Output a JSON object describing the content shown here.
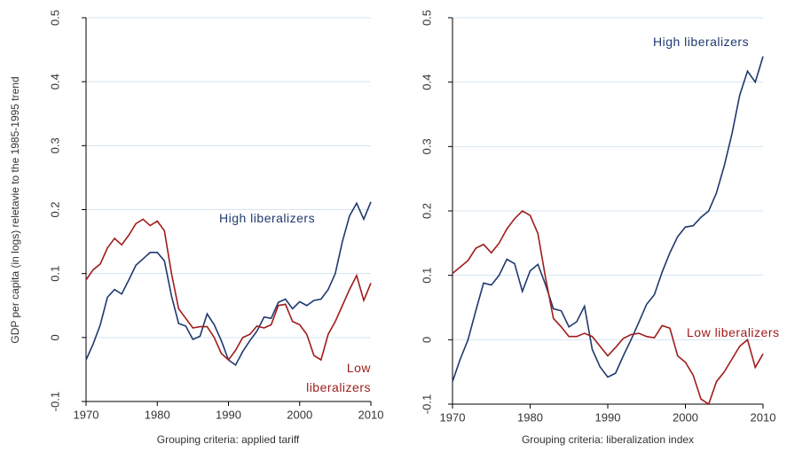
{
  "chart_data": [
    {
      "type": "line",
      "xlabel": "Grouping criteria: applied tariff",
      "ylabel": "GDP per capita (in logs) reletavie to the 1985-1995 trend",
      "x": [
        1970,
        1971,
        1972,
        1973,
        1974,
        1975,
        1976,
        1977,
        1978,
        1979,
        1980,
        1981,
        1982,
        1983,
        1984,
        1985,
        1986,
        1987,
        1988,
        1989,
        1990,
        1991,
        1992,
        1993,
        1994,
        1995,
        1996,
        1997,
        1998,
        1999,
        2000,
        2001,
        2002,
        2003,
        2004,
        2005,
        2006,
        2007,
        2008,
        2009,
        2010
      ],
      "series": [
        {
          "name": "High liberalizers",
          "color": "#1f3a6e",
          "values": [
            -0.035,
            -0.01,
            0.02,
            0.063,
            0.075,
            0.068,
            0.09,
            0.113,
            0.123,
            0.133,
            0.133,
            0.12,
            0.065,
            0.022,
            0.018,
            -0.003,
            0.002,
            0.037,
            0.02,
            -0.005,
            -0.035,
            -0.043,
            -0.022,
            -0.005,
            0.01,
            0.032,
            0.03,
            0.055,
            0.06,
            0.045,
            0.056,
            0.05,
            0.058,
            0.06,
            0.075,
            0.1,
            0.15,
            0.19,
            0.21,
            0.185,
            0.212
          ]
        },
        {
          "name": "Low liberalizers",
          "color": "#a01c1c",
          "values": [
            0.09,
            0.106,
            0.115,
            0.14,
            0.155,
            0.145,
            0.16,
            0.178,
            0.185,
            0.175,
            0.182,
            0.167,
            0.1,
            0.045,
            0.03,
            0.015,
            0.017,
            0.017,
            0,
            -0.025,
            -0.035,
            -0.02,
            0,
            0.005,
            0.018,
            0.015,
            0.02,
            0.05,
            0.052,
            0.025,
            0.02,
            0.005,
            -0.028,
            -0.035,
            0.005,
            0.025,
            0.05,
            0.075,
            0.097,
            0.058,
            0.085
          ]
        }
      ],
      "xlim": [
        1970,
        2010
      ],
      "xticks": [
        1970,
        1980,
        1990,
        2000,
        2010
      ],
      "ylim": [
        -0.1,
        0.5
      ],
      "yticks": [
        -0.1,
        0,
        0.1,
        0.2,
        0.3,
        0.4,
        0.5
      ],
      "grid": true
    },
    {
      "type": "line",
      "xlabel": "Grouping criteria: liberalization index",
      "x": [
        1970,
        1971,
        1972,
        1973,
        1974,
        1975,
        1976,
        1977,
        1978,
        1979,
        1980,
        1981,
        1982,
        1983,
        1984,
        1985,
        1986,
        1987,
        1988,
        1989,
        1990,
        1991,
        1992,
        1993,
        1994,
        1995,
        1996,
        1997,
        1998,
        1999,
        2000,
        2001,
        2002,
        2003,
        2004,
        2005,
        2006,
        2007,
        2008,
        2009,
        2010
      ],
      "series": [
        {
          "name": "High liberalizers",
          "color": "#1f3a6e",
          "values": [
            -0.065,
            -0.03,
            0,
            0.045,
            0.088,
            0.085,
            0.1,
            0.125,
            0.118,
            0.075,
            0.107,
            0.117,
            0.085,
            0.048,
            0.045,
            0.02,
            0.028,
            0.052,
            -0.015,
            -0.042,
            -0.058,
            -0.052,
            -0.025,
            0,
            0.027,
            0.055,
            0.07,
            0.105,
            0.135,
            0.16,
            0.175,
            0.177,
            0.19,
            0.2,
            0.228,
            0.27,
            0.32,
            0.38,
            0.417,
            0.4,
            0.44
          ]
        },
        {
          "name": "Low liberalizers",
          "color": "#a01c1c",
          "values": [
            0.103,
            0.113,
            0.123,
            0.142,
            0.148,
            0.135,
            0.15,
            0.172,
            0.188,
            0.2,
            0.193,
            0.165,
            0.095,
            0.033,
            0.02,
            0.005,
            0.005,
            0.01,
            0.005,
            -0.01,
            -0.025,
            -0.012,
            0.002,
            0.008,
            0.01,
            0.005,
            0.003,
            0.022,
            0.018,
            -0.025,
            -0.035,
            -0.055,
            -0.092,
            -0.1,
            -0.065,
            -0.05,
            -0.03,
            -0.01,
            0,
            -0.043,
            -0.022
          ]
        }
      ],
      "xlim": [
        1970,
        2010
      ],
      "xticks": [
        1970,
        1980,
        1990,
        2000,
        2010
      ],
      "ylim": [
        -0.1,
        0.5
      ],
      "yticks": [
        -0.1,
        0,
        0.1,
        0.2,
        0.3,
        0.4,
        0.5
      ],
      "grid": true
    }
  ]
}
